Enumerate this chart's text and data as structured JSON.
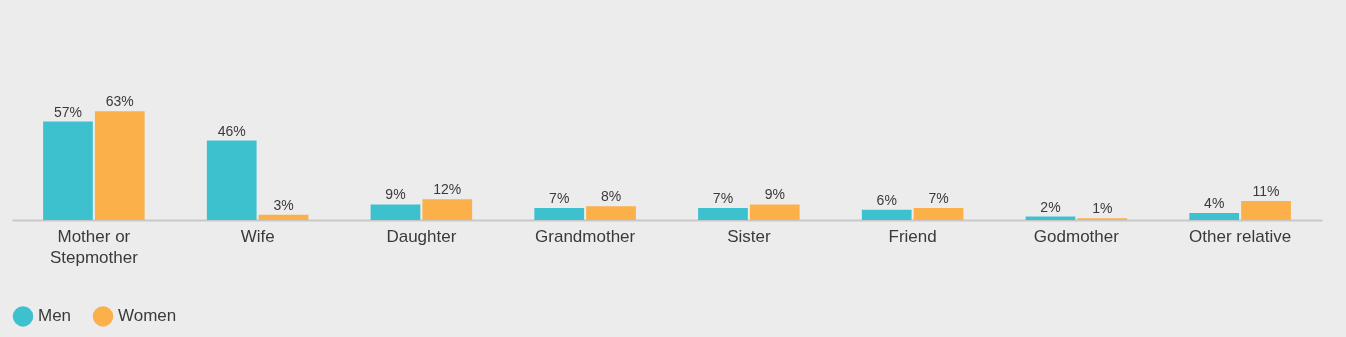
{
  "chart_data": {
    "type": "bar",
    "categories": [
      "Mother or Stepmother",
      "Wife",
      "Daughter",
      "Grandmother",
      "Sister",
      "Friend",
      "Godmother",
      "Other relative"
    ],
    "series": [
      {
        "name": "Men",
        "color": "#3ec1cf",
        "values": [
          57,
          46,
          9,
          7,
          7,
          6,
          2,
          4
        ],
        "value_labels": [
          "57%",
          "46%",
          "9%",
          "7%",
          "7%",
          "6%",
          "2%",
          "4%"
        ]
      },
      {
        "name": "Women",
        "color": "#fbb04a",
        "values": [
          63,
          3,
          12,
          8,
          9,
          7,
          1,
          11
        ],
        "value_labels": [
          "63%",
          "3%",
          "12%",
          "8%",
          "9%",
          "7%",
          "1%",
          "11%"
        ]
      }
    ],
    "legend": "bottom",
    "grid": false
  }
}
